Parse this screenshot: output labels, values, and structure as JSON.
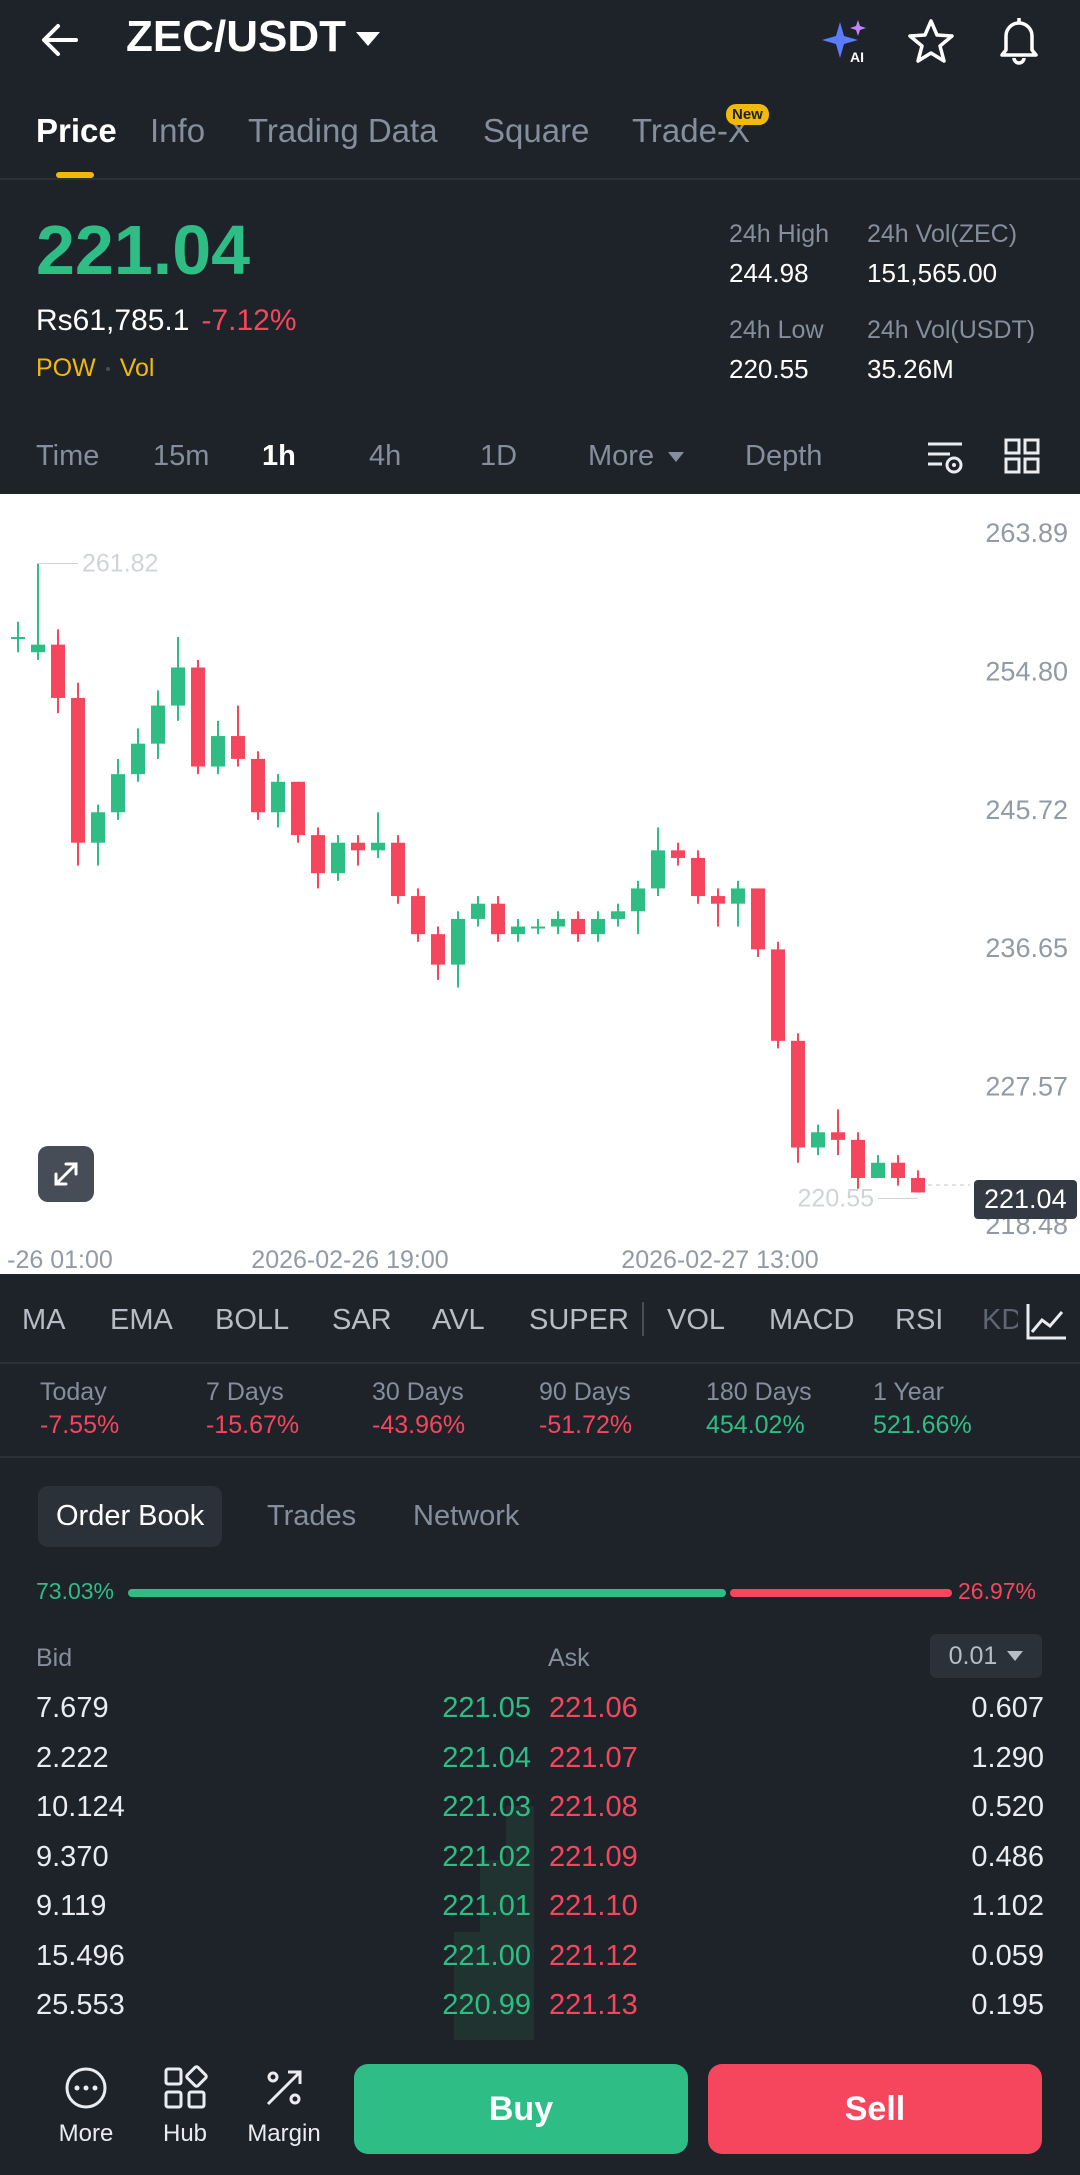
{
  "header": {
    "pair": "ZEC/USDT",
    "icons": [
      "back-arrow-icon",
      "ai-sparkle-icon",
      "star-icon",
      "bell-icon"
    ]
  },
  "tabs": [
    {
      "label": "Price",
      "active": true
    },
    {
      "label": "Info"
    },
    {
      "label": "Trading Data"
    },
    {
      "label": "Square"
    },
    {
      "label": "Trade-X",
      "badge": "New"
    }
  ],
  "price": {
    "last": "221.04",
    "fiat": "Rs61,785.1",
    "change": "-7.12%",
    "tag1": "POW",
    "tag2": "Vol",
    "stats": {
      "high_label": "24h High",
      "high": "244.98",
      "vol_base_label": "24h Vol(ZEC)",
      "vol_base": "151,565.00",
      "low_label": "24h Low",
      "low": "220.55",
      "vol_quote_label": "24h Vol(USDT)",
      "vol_quote": "35.26M"
    }
  },
  "intervals": {
    "items": [
      "Time",
      "15m",
      "1h",
      "4h",
      "1D",
      "More",
      "Depth"
    ],
    "active": "1h"
  },
  "chart_data": {
    "type": "candlestick",
    "y_ticks": [
      "263.89",
      "254.80",
      "245.72",
      "236.65",
      "227.57",
      "218.48"
    ],
    "ylim": [
      218.48,
      263.89
    ],
    "x_ticks": [
      "-26 01:00",
      "2026-02-26 19:00",
      "2026-02-27 13:00"
    ],
    "max_label": "261.82",
    "min_label": "220.55",
    "current_price": "221.04",
    "candles": [
      [
        257.0,
        257.0,
        258.0,
        256.0
      ],
      [
        256.0,
        256.5,
        261.82,
        255.5
      ],
      [
        256.5,
        253.0,
        257.5,
        252.0
      ],
      [
        253.0,
        243.5,
        254.0,
        242.0
      ],
      [
        243.5,
        245.5,
        246.0,
        242.0
      ],
      [
        245.5,
        248.0,
        249.0,
        245.0
      ],
      [
        248.0,
        250.0,
        251.0,
        247.5
      ],
      [
        250.0,
        252.5,
        253.5,
        249.0
      ],
      [
        252.5,
        255.0,
        257.0,
        251.5
      ],
      [
        255.0,
        248.5,
        255.5,
        248.0
      ],
      [
        248.5,
        250.5,
        251.5,
        248.0
      ],
      [
        250.5,
        249.0,
        252.5,
        248.5
      ],
      [
        249.0,
        245.5,
        249.5,
        245.0
      ],
      [
        245.5,
        247.5,
        248.0,
        244.5
      ],
      [
        247.5,
        244.0,
        247.5,
        243.5
      ],
      [
        244.0,
        241.5,
        244.5,
        240.5
      ],
      [
        241.5,
        243.5,
        244.0,
        241.0
      ],
      [
        243.5,
        243.0,
        244.0,
        242.0
      ],
      [
        243.0,
        243.5,
        245.5,
        242.5
      ],
      [
        243.5,
        240.0,
        244.0,
        239.5
      ],
      [
        240.0,
        237.5,
        240.5,
        237.0
      ],
      [
        237.5,
        235.5,
        238.0,
        234.5
      ],
      [
        235.5,
        238.5,
        239.0,
        234.0
      ],
      [
        238.5,
        239.5,
        240.0,
        238.0
      ],
      [
        239.5,
        237.5,
        240.0,
        237.0
      ],
      [
        237.5,
        238.0,
        238.5,
        237.0
      ],
      [
        238.0,
        238.0,
        238.5,
        237.5
      ],
      [
        238.0,
        238.5,
        239.0,
        237.5
      ],
      [
        238.5,
        237.5,
        239.0,
        237.0
      ],
      [
        237.5,
        238.5,
        239.0,
        237.0
      ],
      [
        238.5,
        239.0,
        239.5,
        238.0
      ],
      [
        239.0,
        240.5,
        241.0,
        237.5
      ],
      [
        240.5,
        243.0,
        244.5,
        240.0
      ],
      [
        243.0,
        242.5,
        243.5,
        242.0
      ],
      [
        242.5,
        240.0,
        243.0,
        239.5
      ],
      [
        240.0,
        239.5,
        240.5,
        238.0
      ],
      [
        239.5,
        240.5,
        241.0,
        238.0
      ],
      [
        240.5,
        236.5,
        240.5,
        236.0
      ],
      [
        236.5,
        230.5,
        237.0,
        230.0
      ],
      [
        230.5,
        223.5,
        231.0,
        222.5
      ],
      [
        223.5,
        224.5,
        225.0,
        223.0
      ],
      [
        224.5,
        224.0,
        226.0,
        223.0
      ],
      [
        224.0,
        221.5,
        224.5,
        220.8
      ],
      [
        221.5,
        222.5,
        223.0,
        221.5
      ],
      [
        222.5,
        221.5,
        223.0,
        221.0
      ],
      [
        221.5,
        220.55,
        222.0,
        220.55
      ]
    ]
  },
  "indicators": [
    "MA",
    "EMA",
    "BOLL",
    "SAR",
    "AVL",
    "SUPER",
    "VOL",
    "MACD",
    "RSI",
    "KD"
  ],
  "performance": [
    {
      "label": "Today",
      "value": "-7.55%",
      "dir": "down"
    },
    {
      "label": "7 Days",
      "value": "-15.67%",
      "dir": "down"
    },
    {
      "label": "30 Days",
      "value": "-43.96%",
      "dir": "down"
    },
    {
      "label": "90 Days",
      "value": "-51.72%",
      "dir": "down"
    },
    {
      "label": "180 Days",
      "value": "454.02%",
      "dir": "up"
    },
    {
      "label": "1 Year",
      "value": "521.66%",
      "dir": "up"
    }
  ],
  "orderbook": {
    "tabs": [
      "Order Book",
      "Trades",
      "Network"
    ],
    "bid_ratio": "73.03%",
    "ask_ratio": "26.97%",
    "bid_ratio_value": 0.7303,
    "bid_label": "Bid",
    "ask_label": "Ask",
    "precision": "0.01",
    "rows": [
      {
        "bid_qty": "7.679",
        "bid_price": "221.05",
        "ask_price": "221.06",
        "ask_qty": "0.607"
      },
      {
        "bid_qty": "2.222",
        "bid_price": "221.04",
        "ask_price": "221.07",
        "ask_qty": "1.290"
      },
      {
        "bid_qty": "10.124",
        "bid_price": "221.03",
        "ask_price": "221.08",
        "ask_qty": "0.520"
      },
      {
        "bid_qty": "9.370",
        "bid_price": "221.02",
        "ask_price": "221.09",
        "ask_qty": "0.486"
      },
      {
        "bid_qty": "9.119",
        "bid_price": "221.01",
        "ask_price": "221.10",
        "ask_qty": "1.102"
      },
      {
        "bid_qty": "15.496",
        "bid_price": "221.00",
        "ask_price": "221.12",
        "ask_qty": "0.059"
      },
      {
        "bid_qty": "25.553",
        "bid_price": "220.99",
        "ask_price": "221.13",
        "ask_qty": "0.195"
      }
    ]
  },
  "bottom": {
    "more": "More",
    "hub": "Hub",
    "margin": "Margin",
    "buy": "Buy",
    "sell": "Sell"
  },
  "colors": {
    "up": "#2ebd85",
    "down": "#f6465d",
    "accent": "#f0b90b",
    "bg": "#1e2329"
  }
}
